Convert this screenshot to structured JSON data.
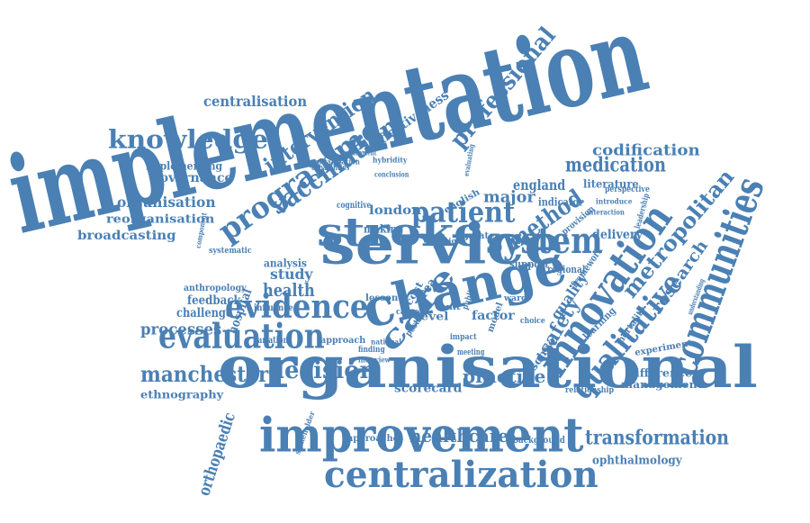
{
  "color": "#4a80b4",
  "words": [
    "implementation",
    "organisational",
    "improvement",
    "service",
    "change",
    "stroke",
    "system",
    "centralization",
    "innovation",
    "communities",
    "qualitative",
    "evaluation",
    "evidence",
    "patient",
    "care",
    "vaccination",
    "programme",
    "intervention",
    "knowledge",
    "professional",
    "effectiveness",
    "centralisation",
    "manchester",
    "decision",
    "metropolitan",
    "research",
    "method",
    "medication",
    "codification",
    "transformation",
    "healthcare",
    "scorecard",
    "practice",
    "processes",
    "orthopaedic",
    "ophthalmology",
    "england",
    "major",
    "safety",
    "quality",
    "study",
    "health",
    "analysis",
    "hospital",
    "feedback",
    "challenge",
    "london",
    "making",
    "reorganisation",
    "broadcasting",
    "organisation",
    "governance",
    "implementing",
    "approach",
    "approaches",
    "background",
    "management",
    "difference",
    "experiment",
    "ethnography",
    "support",
    "regional",
    "framework",
    "delivery",
    "literature",
    "indicator",
    "factor",
    "level",
    "cost",
    "area",
    "mortality",
    "learning",
    "influence",
    "lesson",
    "anthropology",
    "variation",
    "stakeholder",
    "school",
    "cognitive",
    "english",
    "greater",
    "design",
    "relationship",
    "perspective",
    "leadership",
    "understanding",
    "systematic",
    "component",
    "capabilities",
    "development",
    "organization",
    "hybridity",
    "evaluating",
    "conclusion",
    "introduce",
    "interaction",
    "provision",
    "postal",
    "impact",
    "meeting",
    "finding",
    "interview",
    "national",
    "cancer",
    "ward",
    "choice",
    "model",
    "unit",
    "public"
  ]
}
